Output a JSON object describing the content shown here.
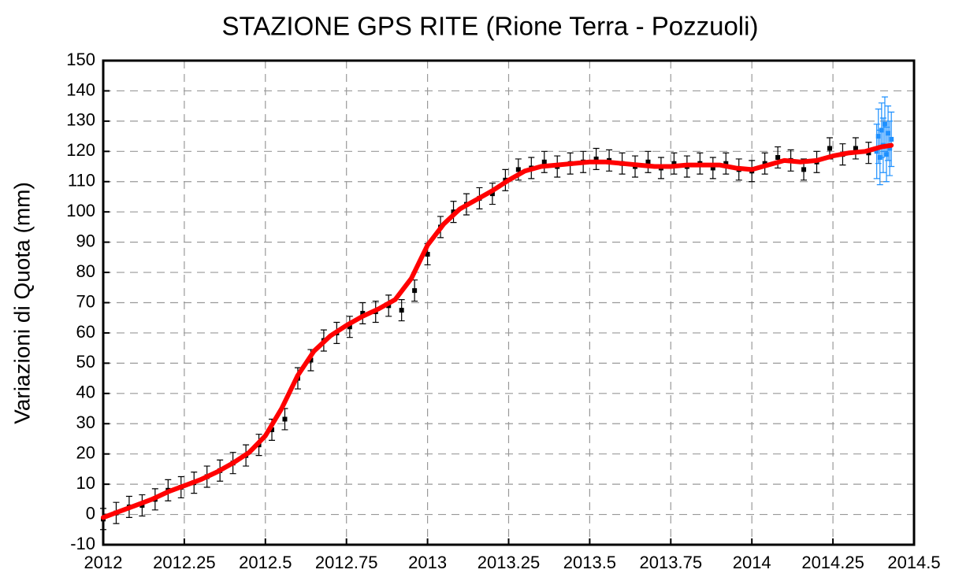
{
  "chart_data": {
    "type": "scatter",
    "title": "STAZIONE GPS RITE (Rione Terra - Pozzuoli)",
    "y_label": "Variazioni di Quota (mm)",
    "xlim": [
      2012,
      2014.5
    ],
    "ylim": [
      -10,
      150
    ],
    "xticks": [
      2012,
      2012.25,
      2012.5,
      2012.75,
      2013,
      2013.25,
      2013.5,
      2013.75,
      2014,
      2014.25,
      2014.5
    ],
    "yticks": [
      -10,
      0,
      10,
      20,
      30,
      40,
      50,
      60,
      70,
      80,
      90,
      100,
      110,
      120,
      130,
      140,
      150
    ],
    "grid": true,
    "series": [
      {
        "color": "#000000",
        "error": 3.5,
        "x": [
          2012,
          2012.04,
          2012.08,
          2012.12,
          2012.16,
          2012.2,
          2012.24,
          2012.28,
          2012.32,
          2012.36,
          2012.4,
          2012.44,
          2012.48,
          2012.52,
          2012.56,
          2012.6,
          2012.64,
          2012.68,
          2012.72,
          2012.76,
          2012.8,
          2012.84,
          2012.88,
          2012.92,
          2012.96,
          2013,
          2013.04,
          2013.08,
          2013.12,
          2013.16,
          2013.2,
          2013.24,
          2013.28,
          2013.32,
          2013.36,
          2013.4,
          2013.44,
          2013.48,
          2013.52,
          2013.56,
          2013.6,
          2013.64,
          2013.68,
          2013.72,
          2013.76,
          2013.8,
          2013.84,
          2013.88,
          2013.92,
          2013.96,
          2014,
          2014.04,
          2014.08,
          2014.12,
          2014.16,
          2014.2,
          2014.24,
          2014.28,
          2014.32,
          2014.36
        ],
        "values": [
          -1.5,
          0.5,
          2.5,
          3,
          5,
          8,
          9,
          10.5,
          12.5,
          14.5,
          17,
          19.5,
          23,
          28,
          31.5,
          45,
          51,
          57.5,
          60,
          62,
          66.5,
          67,
          69,
          67.5,
          74,
          86,
          95,
          100,
          102.5,
          104.5,
          106,
          110.5,
          114,
          114.5,
          116.5,
          115,
          116,
          116.5,
          117.5,
          117,
          116,
          115,
          116.5,
          114.5,
          116,
          115,
          116,
          114.5,
          116,
          114,
          113.5,
          116,
          118,
          117,
          114,
          116.5,
          121,
          119,
          121,
          119.5
        ]
      },
      {
        "color": "#1e90ff",
        "error": 9,
        "x": [
          2014.385,
          2014.39,
          2014.395,
          2014.4,
          2014.405,
          2014.41,
          2014.415,
          2014.42,
          2014.425,
          2014.43
        ],
        "values": [
          120,
          125,
          118,
          127,
          122,
          129,
          119,
          126,
          121,
          124
        ]
      }
    ],
    "trend": {
      "color": "#ff0000",
      "x": [
        2012,
        2012.05,
        2012.1,
        2012.15,
        2012.2,
        2012.25,
        2012.3,
        2012.35,
        2012.4,
        2012.45,
        2012.5,
        2012.55,
        2012.6,
        2012.65,
        2012.7,
        2012.75,
        2012.8,
        2012.85,
        2012.9,
        2012.95,
        2013,
        2013.05,
        2013.1,
        2013.15,
        2013.2,
        2013.25,
        2013.3,
        2013.35,
        2013.4,
        2013.45,
        2013.5,
        2013.55,
        2013.6,
        2013.65,
        2013.7,
        2013.75,
        2013.8,
        2013.85,
        2013.9,
        2013.95,
        2014,
        2014.05,
        2014.1,
        2014.15,
        2014.2,
        2014.25,
        2014.3,
        2014.35,
        2014.4,
        2014.43
      ],
      "values": [
        -1,
        1,
        3,
        5,
        7.5,
        9.5,
        11.5,
        14,
        17,
        20.5,
        26,
        35,
        46,
        54,
        59,
        62.5,
        65.5,
        68,
        71,
        78,
        89,
        96,
        101,
        104,
        107,
        110.5,
        113.5,
        115,
        115.5,
        116,
        116.5,
        116.5,
        116,
        115.5,
        115,
        115,
        115.5,
        115.5,
        115.5,
        114.5,
        114,
        115.5,
        117,
        116.5,
        117,
        118.5,
        119.5,
        120,
        121.5,
        122
      ]
    }
  }
}
